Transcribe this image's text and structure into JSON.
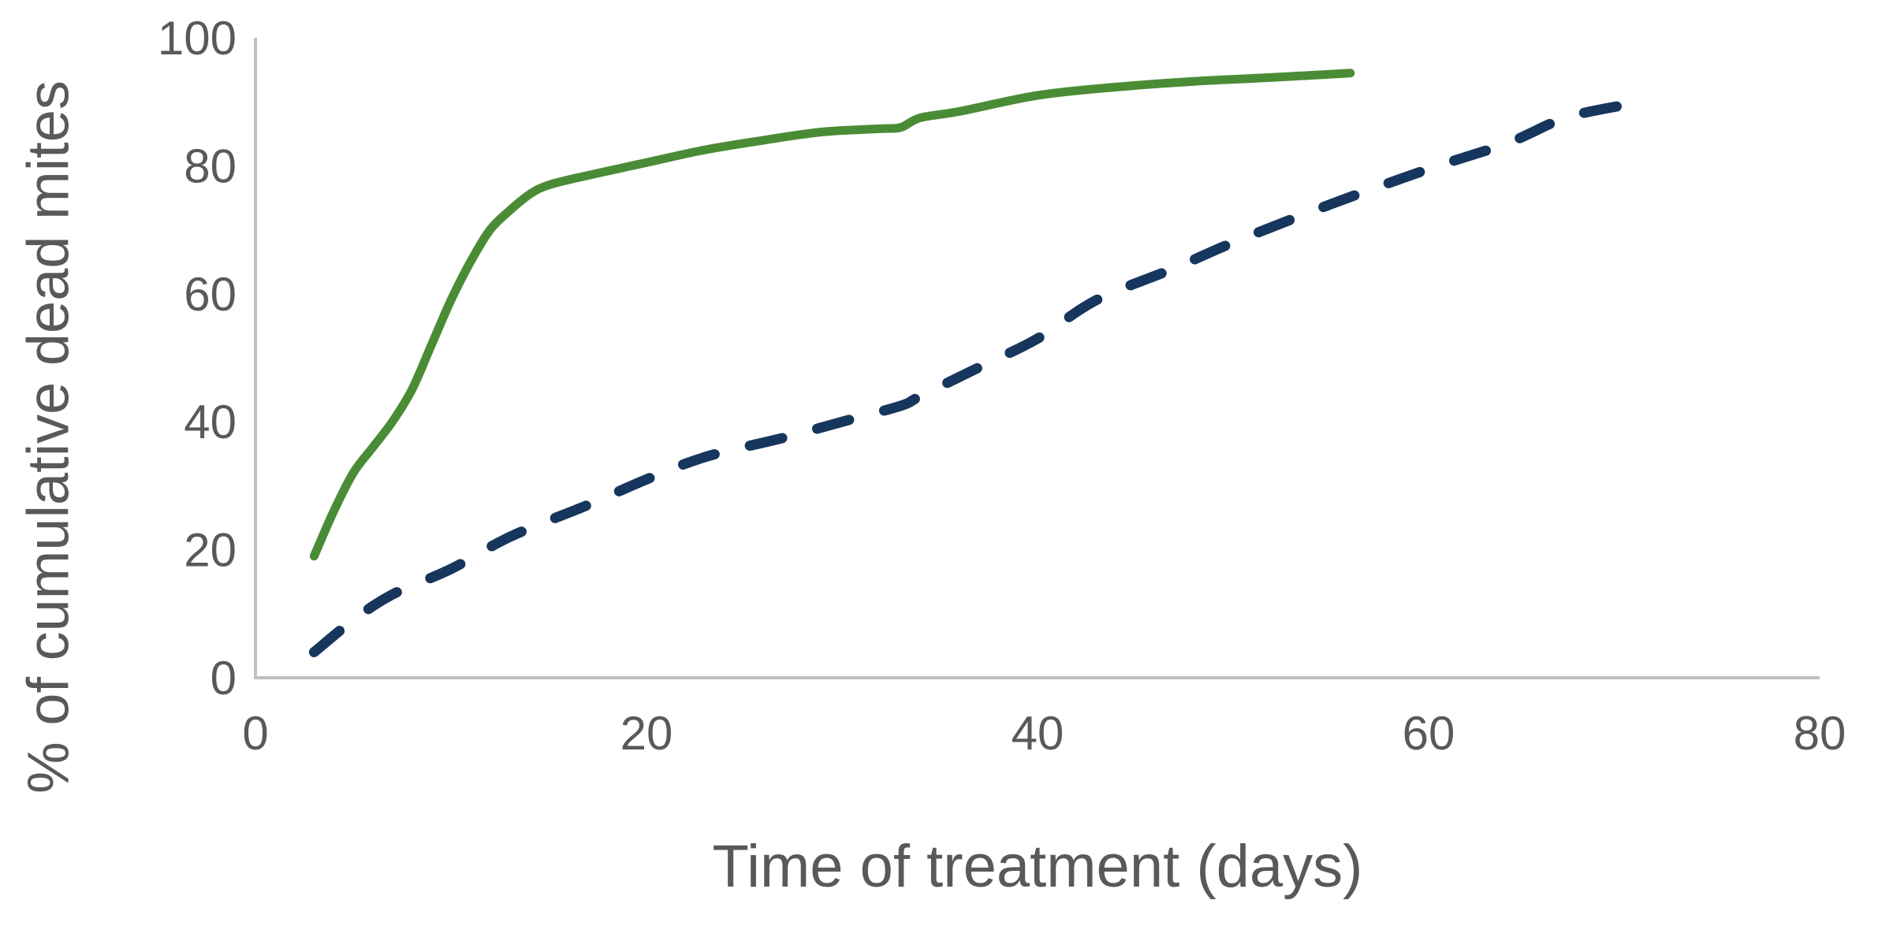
{
  "chart": {
    "background_color": "#ffffff",
    "text_color": "#595959",
    "axis_line_color": "#bfbfbf"
  },
  "chart_data": {
    "type": "line",
    "title": "",
    "xlabel": "Time of treatment (days)",
    "ylabel": "% of cumulative dead mites",
    "xlim": [
      0,
      80
    ],
    "ylim": [
      0,
      100
    ],
    "x_ticks": [
      0,
      20,
      40,
      60,
      80
    ],
    "y_ticks": [
      0,
      20,
      40,
      60,
      80,
      100
    ],
    "grid": false,
    "legend": "none",
    "series": [
      {
        "name": "solid green line",
        "style": "solid",
        "color": "#4a8c35",
        "x": [
          3,
          4,
          5,
          6,
          7,
          8,
          9,
          10,
          11,
          12,
          13,
          14,
          15,
          17,
          20,
          23,
          26,
          29,
          32,
          33,
          34,
          36,
          40,
          44,
          48,
          52,
          56
        ],
        "y": [
          19,
          26,
          32,
          36,
          40,
          45,
          52,
          59,
          65,
          70,
          73,
          75.5,
          77,
          78.5,
          80.5,
          82.5,
          84,
          85.3,
          85.8,
          86,
          87.5,
          88.5,
          91,
          92.3,
          93.2,
          93.8,
          94.5
        ]
      },
      {
        "name": "dashed navy line",
        "style": "dashed",
        "color": "#17365d",
        "x": [
          3,
          5,
          7,
          10,
          13,
          17,
          20,
          23,
          27,
          30,
          33,
          34,
          37,
          40,
          43,
          47,
          50,
          55,
          60,
          64,
          67,
          70
        ],
        "y": [
          4,
          9,
          13,
          17,
          22,
          27,
          31,
          34.5,
          37.5,
          40,
          42.5,
          44,
          48.5,
          53,
          59,
          64,
          68,
          74,
          79.5,
          83.5,
          87.5,
          89.5
        ]
      }
    ]
  }
}
